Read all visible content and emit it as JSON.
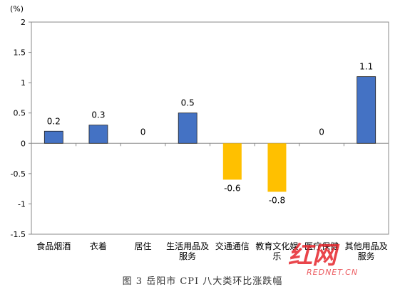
{
  "caption": "图 3 岳阳市 CPI 八大类环比涨跌幅",
  "chart_data": {
    "type": "bar",
    "unit": "(%)",
    "categories": [
      "食品烟酒",
      "衣着",
      "居住",
      "生活用品及服务",
      "交通通信",
      "教育文化娱乐",
      "医疗保健",
      "其他用品及服务"
    ],
    "category_lines": [
      [
        "食品烟酒"
      ],
      [
        "衣着"
      ],
      [
        "居住"
      ],
      [
        "生活用品及",
        "服务"
      ],
      [
        "交通通信"
      ],
      [
        "教育文化娱",
        "乐"
      ],
      [
        "医疗保健"
      ],
      [
        "其他用品及",
        "服务"
      ]
    ],
    "values": [
      0.2,
      0.3,
      0,
      0.5,
      -0.6,
      -0.8,
      0,
      1.1
    ],
    "data_labels": [
      "0.2",
      "0.3",
      "0",
      "0.5",
      "-0.6",
      "-0.8",
      "0",
      "1.1"
    ],
    "ylim": [
      -1.5,
      2
    ],
    "yticks": [
      2,
      1.5,
      1,
      0.5,
      0,
      -0.5,
      -1,
      -1.5
    ],
    "ytick_labels": [
      "2",
      "1.5",
      "1",
      "0.5",
      "0",
      "-0.5",
      "-1",
      "-1.5"
    ],
    "colors": {
      "positive": "#4472C4",
      "negative": "#FFC000"
    },
    "grid": false,
    "legend": "none"
  },
  "watermark": {
    "text": "红网",
    "subtext": "REDNET.CN",
    "color": "#E5242B"
  }
}
